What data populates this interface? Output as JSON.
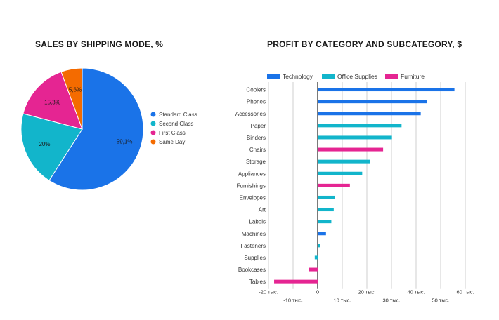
{
  "chart_data": [
    {
      "type": "pie",
      "title": "SALES BY SHIPPING MODE, %",
      "slices": [
        {
          "name": "Standard Class",
          "value": 59.1,
          "label": "59,1%",
          "color": "#1a73e8"
        },
        {
          "name": "Second Class",
          "value": 20.0,
          "label": "20%",
          "color": "#12b5cb"
        },
        {
          "name": "First Class",
          "value": 15.3,
          "label": "15,3%",
          "color": "#e52592"
        },
        {
          "name": "Same Day",
          "value": 5.6,
          "label": "5,6%",
          "color": "#f46b00"
        }
      ],
      "legend_position": "right"
    },
    {
      "type": "bar",
      "orientation": "horizontal",
      "title": "PROFIT BY CATEGORY AND SUBCATEGORY, $",
      "series_legend": [
        {
          "name": "Technology",
          "color": "#1a73e8"
        },
        {
          "name": "Office Supplies",
          "color": "#12b5cb"
        },
        {
          "name": "Furniture",
          "color": "#e52592"
        }
      ],
      "rows": [
        {
          "name": "Copiers",
          "series": "Technology",
          "value": 55600
        },
        {
          "name": "Phones",
          "series": "Technology",
          "value": 44500
        },
        {
          "name": "Accessories",
          "series": "Technology",
          "value": 41900
        },
        {
          "name": "Paper",
          "series": "Office Supplies",
          "value": 34100
        },
        {
          "name": "Binders",
          "series": "Office Supplies",
          "value": 30200
        },
        {
          "name": "Chairs",
          "series": "Furniture",
          "value": 26600
        },
        {
          "name": "Storage",
          "series": "Office Supplies",
          "value": 21300
        },
        {
          "name": "Appliances",
          "series": "Office Supplies",
          "value": 18100
        },
        {
          "name": "Furnishings",
          "series": "Furniture",
          "value": 13100
        },
        {
          "name": "Envelopes",
          "series": "Office Supplies",
          "value": 6960
        },
        {
          "name": "Art",
          "series": "Office Supplies",
          "value": 6530
        },
        {
          "name": "Labels",
          "series": "Office Supplies",
          "value": 5550
        },
        {
          "name": "Machines",
          "series": "Technology",
          "value": 3380
        },
        {
          "name": "Fasteners",
          "series": "Office Supplies",
          "value": 950
        },
        {
          "name": "Supplies",
          "series": "Office Supplies",
          "value": -1190
        },
        {
          "name": "Bookcases",
          "series": "Furniture",
          "value": -3470
        },
        {
          "name": "Tables",
          "series": "Furniture",
          "value": -17700
        }
      ],
      "xlim": [
        -20000,
        60000
      ],
      "xticks": [
        {
          "value": -20000,
          "label": "-20 тыс."
        },
        {
          "value": -10000,
          "label": "-10 тыс."
        },
        {
          "value": 0,
          "label": "0"
        },
        {
          "value": 10000,
          "label": "10 тыс."
        },
        {
          "value": 20000,
          "label": "20 тыс."
        },
        {
          "value": 30000,
          "label": "30 тыс."
        },
        {
          "value": 40000,
          "label": "40 тыс."
        },
        {
          "value": 50000,
          "label": "50 тыс."
        },
        {
          "value": 60000,
          "label": "60 тыс."
        }
      ],
      "grid": true,
      "legend_position": "top"
    }
  ]
}
